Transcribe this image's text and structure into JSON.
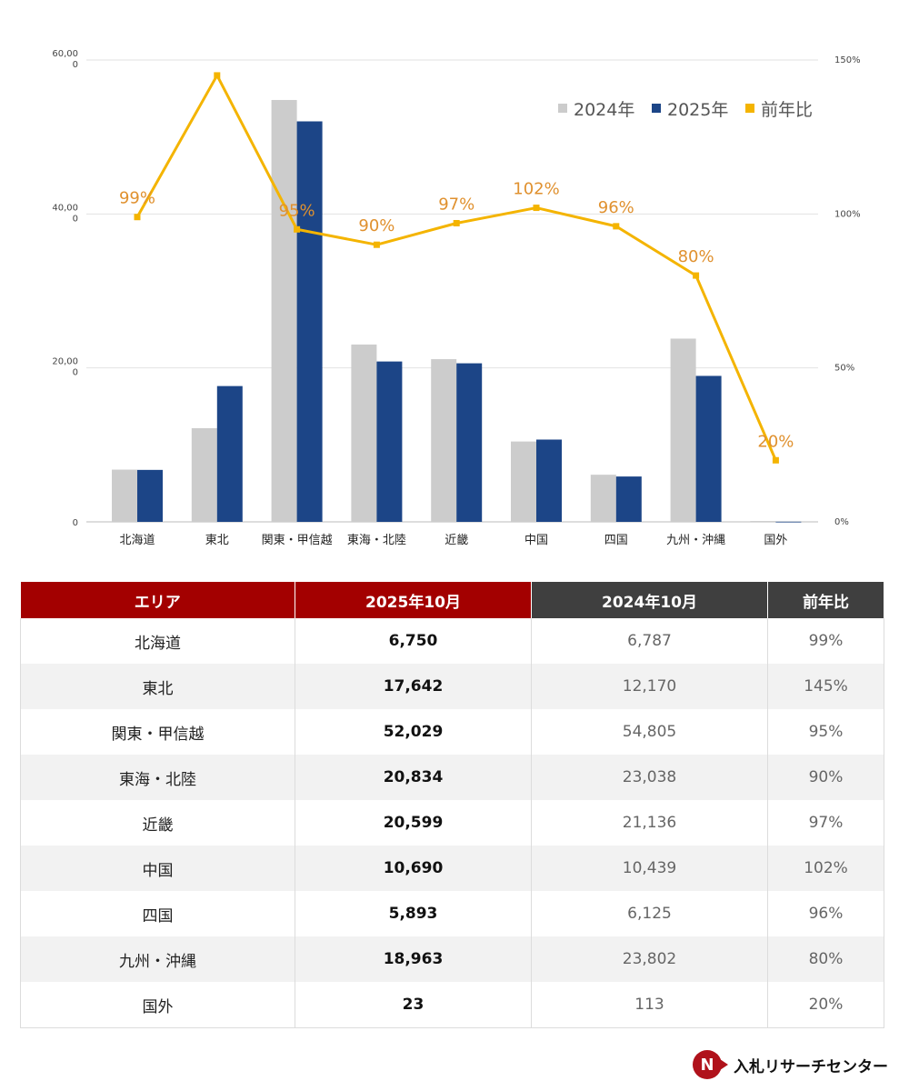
{
  "chart_data": {
    "type": "bar",
    "categories": [
      "北海道",
      "東北",
      "関東・甲信越",
      "東海・北陸",
      "近畿",
      "中国",
      "四国",
      "九州・沖縄",
      "国外"
    ],
    "series": [
      {
        "name": "2024年",
        "type": "bar",
        "axis": "left",
        "color": "#cccccc",
        "values": [
          6787,
          12170,
          54805,
          23038,
          21136,
          10439,
          6125,
          23802,
          113
        ]
      },
      {
        "name": "2025年",
        "type": "bar",
        "axis": "left",
        "color": "#1c4587",
        "values": [
          6750,
          17642,
          52029,
          20834,
          20599,
          10690,
          5893,
          18963,
          23
        ]
      },
      {
        "name": "前年比",
        "type": "line",
        "axis": "right",
        "color": "#f4b400",
        "values": [
          99,
          145,
          95,
          90,
          97,
          102,
          96,
          80,
          20
        ]
      }
    ],
    "point_labels": [
      "99%",
      "",
      "95%",
      "90%",
      "97%",
      "102%",
      "96%",
      "80%",
      "20%"
    ],
    "left_axis": {
      "range": [
        0,
        60000
      ],
      "ticks": [
        {
          "value": 0,
          "lines": [
            "0"
          ]
        },
        {
          "value": 20000,
          "lines": [
            "20,00",
            "0"
          ]
        },
        {
          "value": 40000,
          "lines": [
            "40,00",
            "0"
          ]
        },
        {
          "value": 60000,
          "lines": [
            "60,00",
            "0"
          ]
        }
      ]
    },
    "right_axis": {
      "range": [
        0,
        150
      ],
      "ticks": [
        {
          "value": 0,
          "label": "0%"
        },
        {
          "value": 50,
          "label": "50%"
        },
        {
          "value": 100,
          "label": "100%"
        },
        {
          "value": 150,
          "label": "150%"
        }
      ]
    },
    "grid": true,
    "legend_position": "top-right"
  },
  "table": {
    "headers": {
      "area": "エリア",
      "y2025": "2025年10月",
      "y2024": "2024年10月",
      "ratio": "前年比"
    },
    "colors": {
      "red_header": "#a30000",
      "dark_header": "#3f3f3f"
    },
    "rows": [
      {
        "area": "北海道",
        "y2025": "6,750",
        "y2024": "6,787",
        "ratio": "99%"
      },
      {
        "area": "東北",
        "y2025": "17,642",
        "y2024": "12,170",
        "ratio": "145%"
      },
      {
        "area": "関東・甲信越",
        "y2025": "52,029",
        "y2024": "54,805",
        "ratio": "95%"
      },
      {
        "area": "東海・北陸",
        "y2025": "20,834",
        "y2024": "23,038",
        "ratio": "90%"
      },
      {
        "area": "近畿",
        "y2025": "20,599",
        "y2024": "21,136",
        "ratio": "97%"
      },
      {
        "area": "中国",
        "y2025": "10,690",
        "y2024": "10,439",
        "ratio": "102%"
      },
      {
        "area": "四国",
        "y2025": "5,893",
        "y2024": "6,125",
        "ratio": "96%"
      },
      {
        "area": "九州・沖縄",
        "y2025": "18,963",
        "y2024": "23,802",
        "ratio": "80%"
      },
      {
        "area": "国外",
        "y2025": "23",
        "y2024": "113",
        "ratio": "20%"
      }
    ]
  },
  "logo": {
    "text": "入札リサーチセンター",
    "mark": "N"
  }
}
